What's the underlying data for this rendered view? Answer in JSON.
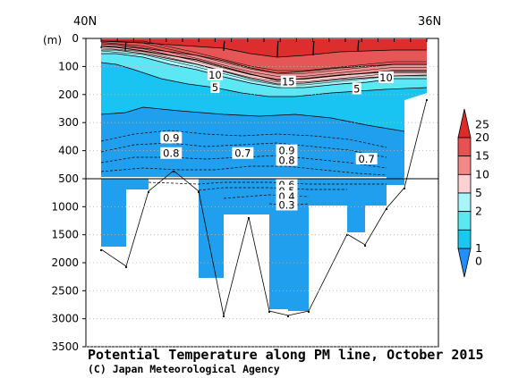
{
  "chart_data": {
    "type": "heatmap",
    "title": "Potential Temperature along PM line, October 2015",
    "credit": "(C) Japan Meteorological Agency",
    "x_start_label": "40N",
    "x_end_label": "36N",
    "y_unit_label": "(m)",
    "y_ticks_upper": [
      "0",
      "100",
      "200",
      "300",
      "400",
      "500"
    ],
    "y_ticks_lower": [
      "1000",
      "1500",
      "2000",
      "2500",
      "3000",
      "3500"
    ],
    "y_split_depth": 500,
    "colorbar_ticks": [
      "0",
      "1",
      "2",
      "5",
      "10",
      "15",
      "20",
      "25"
    ],
    "colorbar_colors": [
      "#1e90ff",
      "#19c8f0",
      "#5ae8f2",
      "#a8f4f8",
      "#fbd1d1",
      "#f28888",
      "#e85151",
      "#dd2b2b"
    ],
    "contour_labels": [
      {
        "text": "10",
        "station": 7.0,
        "depth": 130
      },
      {
        "text": "15",
        "station": 11.5,
        "depth": 155
      },
      {
        "text": "10",
        "station": 17.5,
        "depth": 140
      },
      {
        "text": "5",
        "station": 7.0,
        "depth": 175
      },
      {
        "text": "5",
        "station": 15.7,
        "depth": 180
      },
      {
        "text": "0.9",
        "station": 4.3,
        "depth": 355
      },
      {
        "text": "0.8",
        "station": 4.3,
        "depth": 410
      },
      {
        "text": "0.7",
        "station": 8.7,
        "depth": 410
      },
      {
        "text": "0.9",
        "station": 11.4,
        "depth": 400
      },
      {
        "text": "0.8",
        "station": 11.4,
        "depth": 435
      },
      {
        "text": "0.7",
        "station": 16.3,
        "depth": 430
      },
      {
        "text": "0.6",
        "station": 11.4,
        "depth": 610
      },
      {
        "text": "0.5",
        "station": 11.4,
        "depth": 720
      },
      {
        "text": "0.4",
        "station": 11.4,
        "depth": 820
      },
      {
        "text": "0.3",
        "station": 11.4,
        "depth": 970
      }
    ]
  }
}
